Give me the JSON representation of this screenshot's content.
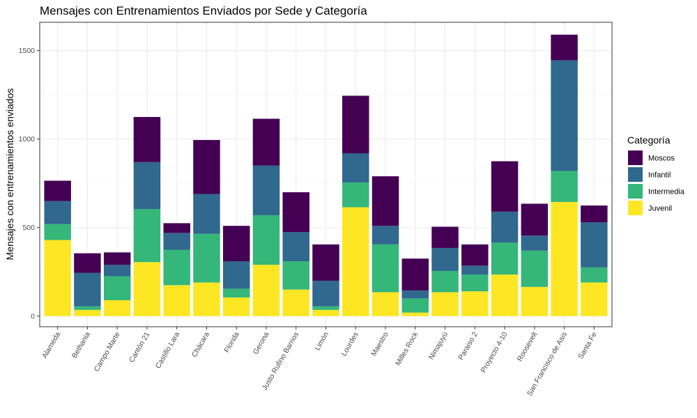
{
  "chart_data": {
    "type": "bar",
    "stacked": true,
    "title": "Mensajes con Entrenamientos Enviados por Sede y Categoría",
    "xlabel": "",
    "ylabel": "Mensajes con entrenamientos enviados",
    "ylim": [
      -60,
      1660
    ],
    "yticks": [
      0,
      500,
      1000,
      1500
    ],
    "grid": true,
    "legend": {
      "title": "Categoría",
      "position": "right"
    },
    "categories": [
      "Alameda",
      "Bethania",
      "Campo Marte",
      "Cantón 21",
      "Castillo Lara",
      "Chácara",
      "Florida",
      "Gerona",
      "Justo Rufino Barrios",
      "Limón",
      "Lourdes",
      "Maestro",
      "Milles Rock",
      "Nimajuyú",
      "Paraiso 2",
      "Proyecto 4-10",
      "Roosevelt",
      "San Francisco de Asis",
      "Santa Fe"
    ],
    "series": [
      {
        "name": "Juvenil",
        "color": "#FDE725",
        "values": [
          430,
          35,
          90,
          305,
          175,
          190,
          105,
          290,
          150,
          35,
          615,
          135,
          20,
          135,
          140,
          235,
          165,
          645,
          190
        ]
      },
      {
        "name": "Intermedia",
        "color": "#35B779",
        "values": [
          90,
          20,
          135,
          300,
          200,
          275,
          50,
          280,
          160,
          20,
          140,
          270,
          80,
          120,
          95,
          180,
          205,
          175,
          85
        ]
      },
      {
        "name": "Infantil",
        "color": "#31688E",
        "values": [
          130,
          190,
          65,
          265,
          95,
          225,
          155,
          280,
          165,
          145,
          165,
          105,
          45,
          130,
          50,
          175,
          85,
          625,
          255
        ]
      },
      {
        "name": "Moscos",
        "color": "#440154",
        "values": [
          115,
          110,
          70,
          255,
          55,
          305,
          200,
          265,
          225,
          205,
          325,
          280,
          180,
          120,
          120,
          285,
          180,
          145,
          95
        ]
      }
    ],
    "legend_order": [
      "Moscos",
      "Infantil",
      "Intermedia",
      "Juvenil"
    ]
  }
}
